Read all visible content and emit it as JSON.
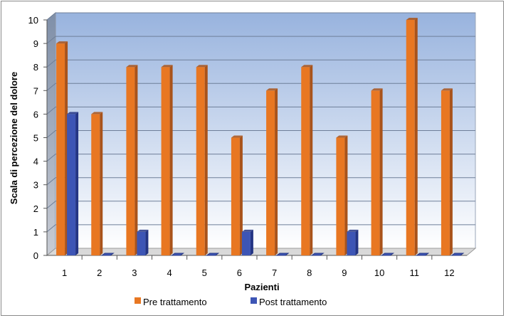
{
  "chart_data": {
    "type": "bar",
    "title": "",
    "xlabel": "Pazienti",
    "ylabel": "Scala di percezione del dolore",
    "categories": [
      "1",
      "2",
      "3",
      "4",
      "5",
      "6",
      "7",
      "8",
      "9",
      "10",
      "11",
      "12"
    ],
    "series": [
      {
        "name": "Pre trattamento",
        "values": [
          9,
          6,
          8,
          8,
          8,
          5,
          7,
          8,
          5,
          7,
          10,
          7
        ]
      },
      {
        "name": "Post trattamento",
        "values": [
          6,
          0,
          1,
          0,
          0,
          1,
          0,
          0,
          1,
          0,
          0,
          0
        ]
      }
    ],
    "ylim": [
      0,
      10
    ],
    "yticks": [
      0,
      1,
      2,
      3,
      4,
      5,
      6,
      7,
      8,
      9,
      10
    ],
    "grid": true,
    "legend_position": "bottom",
    "colors": {
      "pre": "#E87722",
      "pre_dark": "#A9531A",
      "post": "#3D55B5",
      "post_dark": "#243584",
      "wall_top": "#98B3DE",
      "wall_bottom": "#FFFFFF"
    }
  }
}
